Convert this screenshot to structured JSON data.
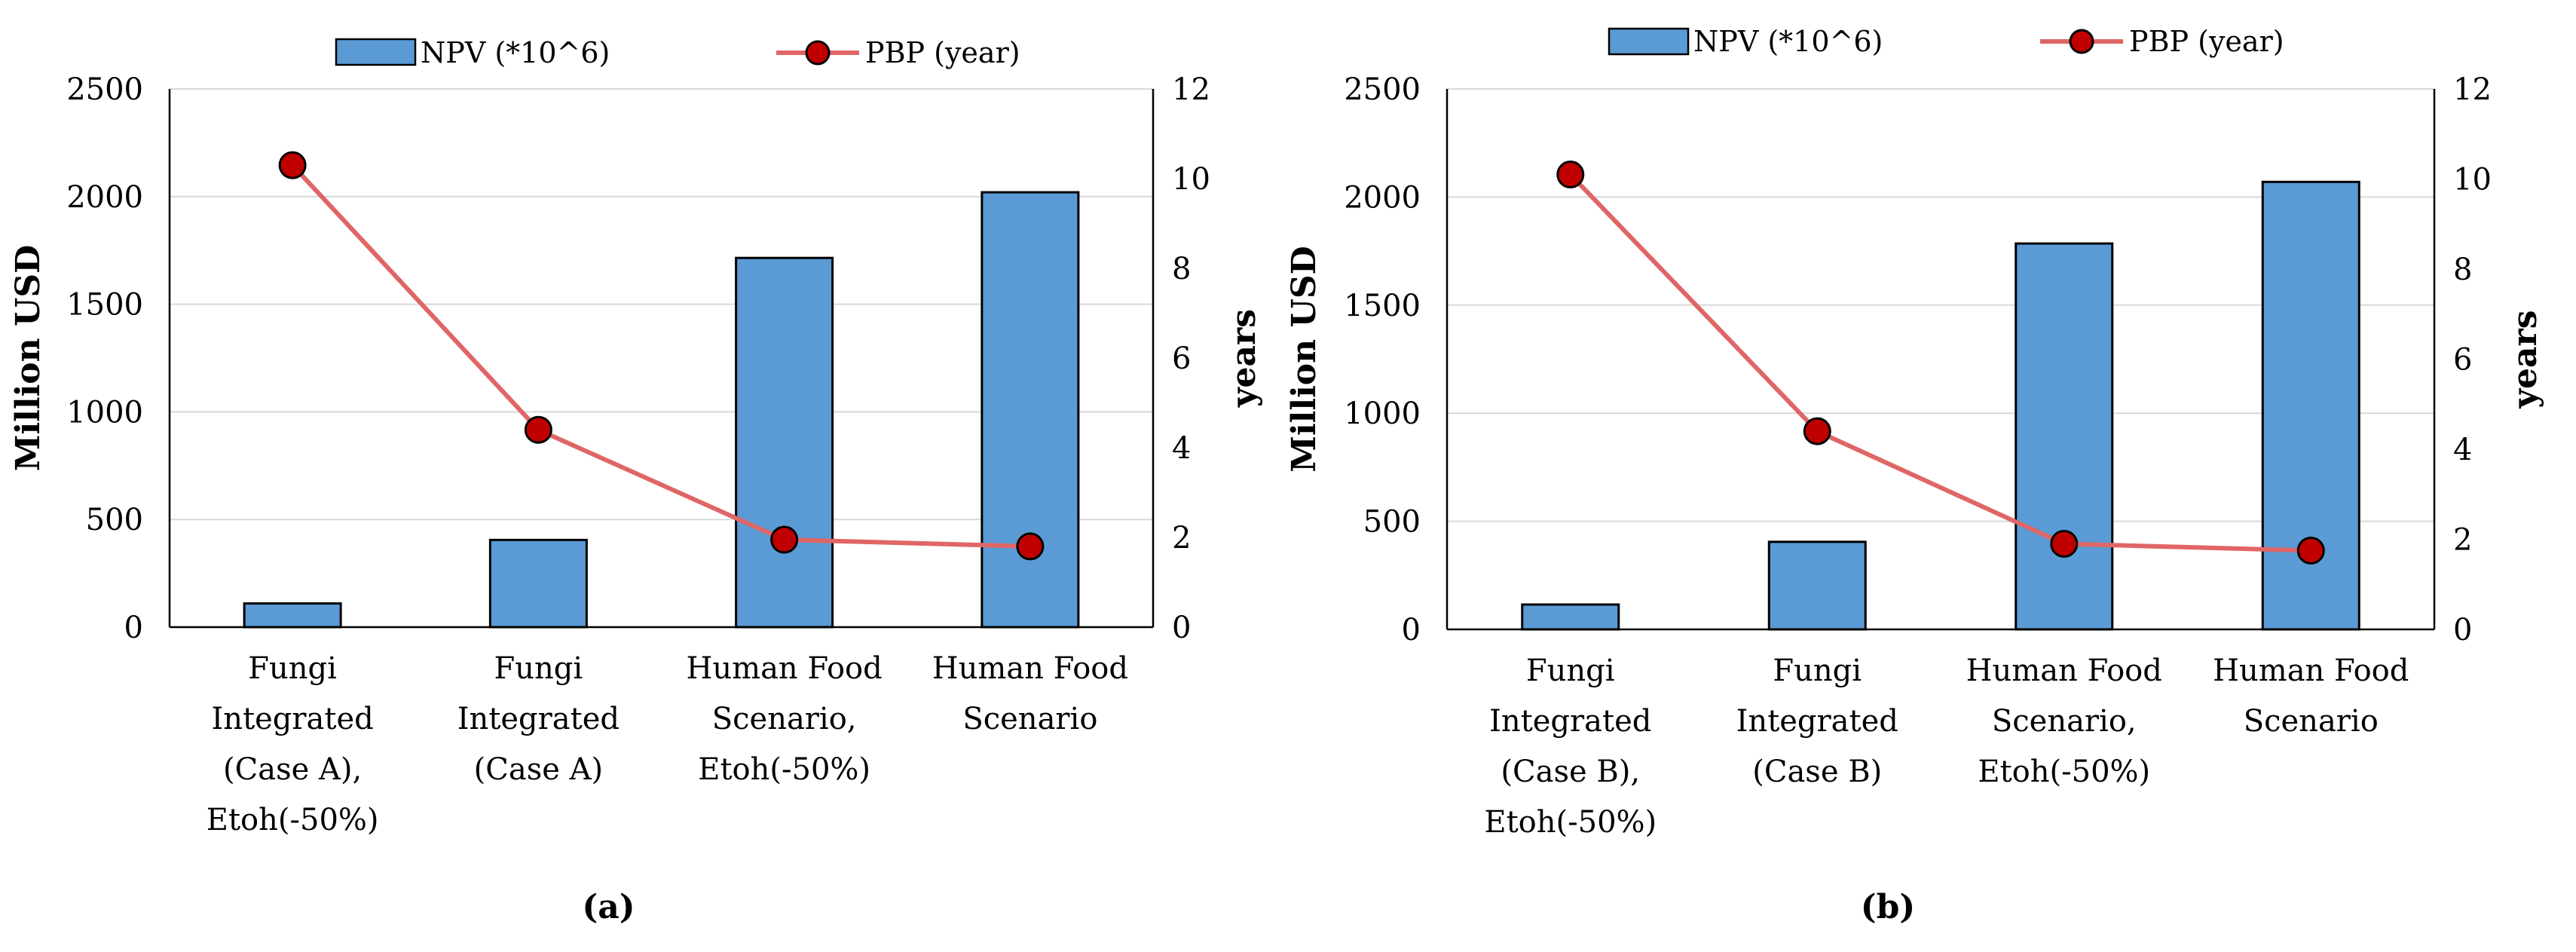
{
  "chart_data": [
    {
      "type": "bar",
      "panel_label": "(a)",
      "categories": [
        [
          "Fungi",
          "Integrated",
          "(Case A),",
          "Etoh(-50%)"
        ],
        [
          "Fungi",
          "Integrated",
          "(Case A)"
        ],
        [
          "Human Food",
          "Scenario,",
          "Etoh(-50%)"
        ],
        [
          "Human Food",
          "Scenario"
        ]
      ],
      "series": [
        {
          "name": "NPV (*10^6)",
          "kind": "bar",
          "axis": "left",
          "color": "#5b9bd5",
          "values": [
            110,
            405,
            1715,
            2020
          ]
        },
        {
          "name": "PBP  (year)",
          "kind": "line",
          "axis": "right",
          "color": "#e06666",
          "marker_color": "#c00000",
          "values": [
            10.3,
            4.4,
            1.95,
            1.8
          ]
        }
      ],
      "ylabel": "Million USD",
      "ylim": [
        0,
        2500
      ],
      "yticks": [
        "0",
        "500",
        "1000",
        "1500",
        "2000",
        "2500"
      ],
      "y2label": "years",
      "y2lim": [
        0,
        12
      ],
      "y2ticks": [
        "0",
        "2",
        "4",
        "6",
        "8",
        "10",
        "12"
      ],
      "grid": true,
      "legend": "top-center"
    },
    {
      "type": "bar",
      "panel_label": "(b)",
      "categories": [
        [
          "Fungi",
          "Integrated",
          "(Case B),",
          "Etoh(-50%)"
        ],
        [
          "Fungi",
          "Integrated",
          "(Case B)"
        ],
        [
          "Human Food",
          "Scenario,",
          "Etoh(-50%)"
        ],
        [
          "Human Food",
          "Scenario"
        ]
      ],
      "series": [
        {
          "name": "NPV (*10^6)",
          "kind": "bar",
          "axis": "left",
          "color": "#5b9bd5",
          "values": [
            115,
            405,
            1785,
            2070
          ]
        },
        {
          "name": "PBP  (year)",
          "kind": "line",
          "axis": "right",
          "color": "#e06666",
          "marker_color": "#c00000",
          "values": [
            10.1,
            4.4,
            1.9,
            1.75
          ]
        }
      ],
      "ylabel": "Million USD",
      "ylim": [
        0,
        2500
      ],
      "yticks": [
        "0",
        "500",
        "1000",
        "1500",
        "2000",
        "2500"
      ],
      "y2label": "years",
      "y2lim": [
        0,
        12
      ],
      "y2ticks": [
        "0",
        "2",
        "4",
        "6",
        "8",
        "10",
        "12"
      ],
      "grid": true,
      "legend": "top-center"
    }
  ]
}
